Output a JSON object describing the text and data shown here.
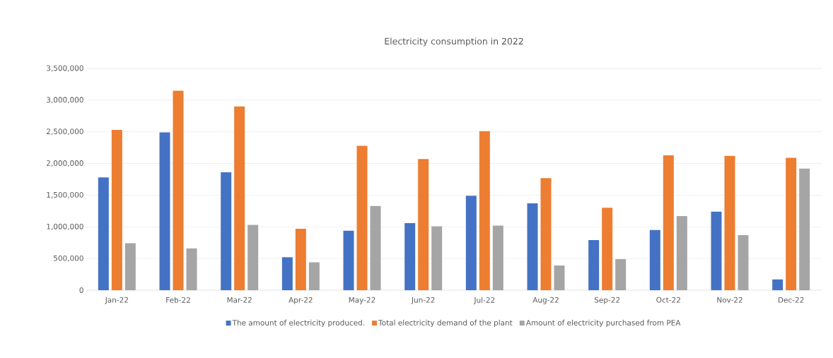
{
  "chart_data": {
    "type": "bar",
    "title": "Electricity consumption in 2022",
    "categories": [
      "Jan-22",
      "Feb-22",
      "Mar-22",
      "Apr-22",
      "May-22",
      "Jun-22",
      "Jul-22",
      "Aug-22",
      "Sep-22",
      "Oct-22",
      "Nov-22",
      "Dec-22"
    ],
    "series": [
      {
        "name": "The amount of electricity produced.",
        "color": "#4472c4",
        "values": [
          1780000,
          2490000,
          1860000,
          520000,
          940000,
          1060000,
          1490000,
          1370000,
          790000,
          950000,
          1240000,
          170000
        ]
      },
      {
        "name": "Total electricity demand of the plant",
        "color": "#ed7d31",
        "values": [
          2530000,
          3150000,
          2900000,
          970000,
          2280000,
          2070000,
          2510000,
          1770000,
          1300000,
          2130000,
          2120000,
          2090000
        ]
      },
      {
        "name": "Amount of electricity purchased from PEA",
        "color": "#a5a5a5",
        "values": [
          740000,
          660000,
          1030000,
          440000,
          1330000,
          1010000,
          1020000,
          390000,
          490000,
          1170000,
          870000,
          1920000
        ]
      }
    ],
    "ylim": [
      0,
      3500000
    ],
    "yticks": [
      0,
      {
        "value": 500000,
        "label": "500,000"
      },
      {
        "value": 1000000,
        "label": "1,000,000"
      },
      {
        "value": 1500000,
        "label": "1,500,000"
      },
      {
        "value": 2000000,
        "label": "2,000,000"
      },
      {
        "value": 2500000,
        "label": "2,500,000"
      },
      {
        "value": 3000000,
        "label": "3,000,000"
      },
      {
        "value": 3500000,
        "label": "3,500,000"
      }
    ],
    "grid": "y",
    "legend": "bottom"
  }
}
